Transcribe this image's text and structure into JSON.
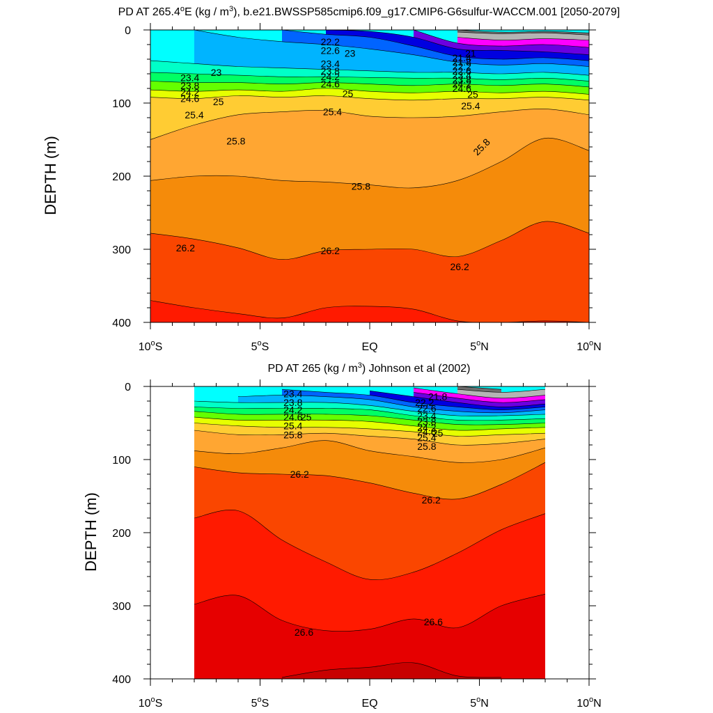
{
  "chart_data": [
    {
      "type": "contour",
      "title": "PD AT 265.4°E (kg / m³), b.e21.BWSSP585cmip6.f09_g17.CMIP6-G6sulfur-WACCM.001 [2050-2079]",
      "title_parts": {
        "a": "PD AT 265.4",
        "deg": "o",
        "b": "E (kg / m",
        "exp": "3",
        "c": "), b.e21.BWSSP585cmip6.f09_g17.CMIP6-G6sulfur-WACCM.001 [2050-2079]"
      },
      "ylabel": "DEPTH (m)",
      "xlim": [
        -10,
        10
      ],
      "ylim": [
        400,
        0
      ],
      "x_ticks": [
        {
          "value": -10,
          "num": "10",
          "sup": "o",
          "hemi": "S"
        },
        {
          "value": -5,
          "num": "5",
          "sup": "o",
          "hemi": "S"
        },
        {
          "value": 0,
          "num": "EQ",
          "sup": "",
          "hemi": ""
        },
        {
          "value": 5,
          "num": "5",
          "sup": "o",
          "hemi": "N"
        },
        {
          "value": 10,
          "num": "10",
          "sup": "o",
          "hemi": "N"
        }
      ],
      "y_ticks": [
        "0",
        "100",
        "200",
        "300",
        "400"
      ],
      "y_tick_values": [
        0,
        100,
        200,
        300,
        400
      ],
      "x_range": [
        -10,
        10
      ],
      "x_nodes": [
        -10,
        -8,
        -6,
        -4,
        -2,
        0,
        2,
        4,
        6,
        8,
        10
      ],
      "base_color": "#00ffff",
      "bands": [
        {
          "level": 21.0,
          "color": "#6e6e6e",
          "depth": [
            null,
            null,
            null,
            null,
            null,
            null,
            null,
            0,
            3,
            2,
            4
          ]
        },
        {
          "level": 21.4,
          "color": "#b4b4b4",
          "depth": [
            null,
            null,
            null,
            null,
            null,
            null,
            null,
            3,
            5,
            4,
            7
          ]
        },
        {
          "level": 21.8,
          "color": "#ff00ff",
          "depth": [
            null,
            null,
            null,
            null,
            null,
            null,
            null,
            10,
            14,
            12,
            14
          ]
        },
        {
          "level": 22.2,
          "color": "#6b00e0",
          "depth": [
            null,
            null,
            null,
            null,
            null,
            null,
            0,
            18,
            22,
            20,
            24
          ]
        },
        {
          "level": 22.6,
          "color": "#0000e0",
          "depth": [
            null,
            null,
            null,
            null,
            0,
            2,
            10,
            26,
            28,
            30,
            34
          ]
        },
        {
          "level": 23.0,
          "color": "#0064ff",
          "depth": [
            null,
            null,
            null,
            0,
            6,
            10,
            22,
            36,
            40,
            38,
            42
          ]
        },
        {
          "level": 23.4,
          "color": "#00b4ff",
          "depth": [
            null,
            0,
            10,
            16,
            20,
            26,
            34,
            44,
            48,
            46,
            50
          ]
        },
        {
          "level": 23.8,
          "color": "#00ffc8",
          "depth": [
            42,
            46,
            50,
            52,
            54,
            56,
            58,
            58,
            60,
            58,
            62
          ]
        },
        {
          "level": 24.2,
          "color": "#00ff64",
          "depth": [
            58,
            60,
            62,
            64,
            64,
            65,
            66,
            66,
            68,
            66,
            70
          ]
        },
        {
          "level": 24.6,
          "color": "#64ff00",
          "depth": [
            70,
            72,
            72,
            74,
            72,
            74,
            76,
            74,
            76,
            74,
            78
          ]
        },
        {
          "level": 25.0,
          "color": "#e6ff00",
          "depth": [
            82,
            84,
            82,
            84,
            80,
            84,
            86,
            84,
            86,
            84,
            88
          ]
        },
        {
          "level": 25.4,
          "color": "#ffcc33",
          "depth": [
            92,
            94,
            90,
            92,
            90,
            94,
            96,
            94,
            94,
            92,
            96
          ]
        },
        {
          "level": 25.8,
          "color": "#ffa632",
          "depth": [
            150,
            130,
            116,
            112,
            110,
            118,
            120,
            118,
            112,
            108,
            116
          ]
        },
        {
          "level": 26.2,
          "color": "#f58b0a",
          "depth": [
            206,
            200,
            200,
            206,
            208,
            212,
            216,
            206,
            180,
            148,
            165
          ]
        },
        {
          "level": 26.6,
          "color": "#fa4600",
          "depth": [
            278,
            286,
            298,
            314,
            302,
            300,
            300,
            310,
            288,
            262,
            278
          ]
        },
        {
          "level": 27.0,
          "color": "#ff1a00",
          "depth": [
            370,
            380,
            388,
            394,
            380,
            378,
            382,
            398,
            400,
            398,
            400
          ]
        }
      ],
      "contour_labels": [
        {
          "text": "22.2",
          "x": -1.8,
          "y": 16
        },
        {
          "text": "22.6",
          "x": -1.8,
          "y": 28
        },
        {
          "text": "23",
          "x": -0.9,
          "y": 32
        },
        {
          "text": "23.4",
          "x": -1.8,
          "y": 46
        },
        {
          "text": "23.8",
          "x": -1.8,
          "y": 56
        },
        {
          "text": "24.2",
          "x": -1.8,
          "y": 64
        },
        {
          "text": "24.6",
          "x": -1.8,
          "y": 74
        },
        {
          "text": "25",
          "x": -1.0,
          "y": 87
        },
        {
          "text": "25.4",
          "x": -1.7,
          "y": 112
        },
        {
          "text": "25.8",
          "x": -0.4,
          "y": 214
        },
        {
          "text": "26.2",
          "x": -1.8,
          "y": 302
        },
        {
          "text": "26.2",
          "x": 4.1,
          "y": 324
        },
        {
          "text": "26.2",
          "x": -8.4,
          "y": 298
        },
        {
          "text": "23",
          "x": -7.0,
          "y": 58
        },
        {
          "text": "23.4",
          "x": -8.2,
          "y": 65
        },
        {
          "text": "23.8",
          "x": -8.2,
          "y": 76
        },
        {
          "text": "24.2",
          "x": -8.2,
          "y": 85
        },
        {
          "text": "24.6",
          "x": -8.2,
          "y": 94
        },
        {
          "text": "25",
          "x": -6.9,
          "y": 98
        },
        {
          "text": "25.4",
          "x": -8.0,
          "y": 116
        },
        {
          "text": "25.8",
          "x": -6.1,
          "y": 152
        },
        {
          "text": "21",
          "x": 4.6,
          "y": 32
        },
        {
          "text": "21.4",
          "x": 4.2,
          "y": 38
        },
        {
          "text": "21.8",
          "x": 4.2,
          "y": 44
        },
        {
          "text": "22.2",
          "x": 4.2,
          "y": 50
        },
        {
          "text": "22.6",
          "x": 4.2,
          "y": 56
        },
        {
          "text": "23.4",
          "x": 4.2,
          "y": 62
        },
        {
          "text": "23.8",
          "x": 4.2,
          "y": 68
        },
        {
          "text": "24.2",
          "x": 4.2,
          "y": 74
        },
        {
          "text": "24.6",
          "x": 4.2,
          "y": 80
        },
        {
          "text": "25",
          "x": 4.7,
          "y": 88
        },
        {
          "text": "25.4",
          "x": 4.6,
          "y": 104
        },
        {
          "text": "25.8",
          "x": 5.1,
          "y": 160,
          "rotate": -45
        }
      ]
    },
    {
      "type": "contour",
      "title": "PD AT 265 (kg / m³) Johnson et al (2002)",
      "title_parts": {
        "a": "PD AT 265 (kg / m",
        "exp": "3",
        "c": ") Johnson et al (2002)"
      },
      "ylabel": "DEPTH (m)",
      "xlim": [
        -10,
        10
      ],
      "ylim": [
        400,
        0
      ],
      "x_ticks": [
        {
          "value": -10,
          "num": "10",
          "sup": "o",
          "hemi": "S"
        },
        {
          "value": -5,
          "num": "5",
          "sup": "o",
          "hemi": "S"
        },
        {
          "value": 0,
          "num": "EQ",
          "sup": "",
          "hemi": ""
        },
        {
          "value": 5,
          "num": "5",
          "sup": "o",
          "hemi": "N"
        },
        {
          "value": 10,
          "num": "10",
          "sup": "o",
          "hemi": "N"
        }
      ],
      "y_ticks": [
        "0",
        "100",
        "200",
        "300",
        "400"
      ],
      "y_tick_values": [
        0,
        100,
        200,
        300,
        400
      ],
      "x_range": [
        -8,
        8
      ],
      "x_nodes": [
        -8,
        -6,
        -4,
        -2,
        0,
        2,
        4,
        6,
        8
      ],
      "base_color": "#00ffff",
      "bands": [
        {
          "level": 21.0,
          "color": "#6e6e6e",
          "depth": [
            null,
            null,
            null,
            null,
            null,
            null,
            0,
            4,
            null
          ]
        },
        {
          "level": 21.4,
          "color": "#b4b4b4",
          "depth": [
            null,
            null,
            null,
            null,
            null,
            null,
            4,
            8,
            4
          ]
        },
        {
          "level": 21.8,
          "color": "#ff00ff",
          "depth": [
            null,
            null,
            null,
            null,
            null,
            2,
            10,
            16,
            12
          ]
        },
        {
          "level": 22.2,
          "color": "#6b00e0",
          "depth": [
            null,
            null,
            null,
            null,
            null,
            8,
            16,
            22,
            18
          ]
        },
        {
          "level": 22.6,
          "color": "#0000e0",
          "depth": [
            null,
            null,
            null,
            null,
            6,
            14,
            22,
            28,
            24
          ]
        },
        {
          "level": 23.0,
          "color": "#0064ff",
          "depth": [
            null,
            null,
            4,
            8,
            12,
            22,
            28,
            32,
            28
          ]
        },
        {
          "level": 23.4,
          "color": "#00b4ff",
          "depth": [
            null,
            14,
            12,
            14,
            18,
            28,
            34,
            36,
            32
          ]
        },
        {
          "level": 23.8,
          "color": "#00ffc8",
          "depth": [
            20,
            22,
            22,
            22,
            26,
            34,
            40,
            40,
            38
          ]
        },
        {
          "level": 24.2,
          "color": "#00ff64",
          "depth": [
            28,
            30,
            30,
            30,
            32,
            40,
            46,
            46,
            44
          ]
        },
        {
          "level": 24.6,
          "color": "#64ff00",
          "depth": [
            34,
            38,
            38,
            38,
            40,
            46,
            52,
            52,
            50
          ]
        },
        {
          "level": 25.0,
          "color": "#e6ff00",
          "depth": [
            42,
            46,
            46,
            46,
            48,
            54,
            60,
            58,
            56
          ]
        },
        {
          "level": 25.4,
          "color": "#ffcc33",
          "depth": [
            50,
            54,
            56,
            56,
            58,
            62,
            68,
            66,
            64
          ]
        },
        {
          "level": 25.8,
          "color": "#ffa632",
          "depth": [
            60,
            66,
            66,
            64,
            68,
            72,
            80,
            78,
            72
          ]
        },
        {
          "level": 26.2,
          "color": "#f58b0a",
          "depth": [
            88,
            92,
            84,
            74,
            88,
            96,
            104,
            100,
            84
          ]
        },
        {
          "level": 26.6,
          "color": "#fa4600",
          "depth": [
            110,
            118,
            120,
            122,
            132,
            146,
            154,
            134,
            104
          ]
        },
        {
          "level": 27.0,
          "color": "#ff1a00",
          "depth": [
            180,
            170,
            210,
            240,
            264,
            254,
            228,
            196,
            174
          ]
        },
        {
          "level": 27.4,
          "color": "#e60000",
          "depth": [
            298,
            286,
            320,
            334,
            332,
            318,
            330,
            300,
            284
          ]
        },
        {
          "level": 27.8,
          "color": "#c80000",
          "depth": [
            null,
            null,
            398,
            388,
            384,
            378,
            396,
            398,
            null
          ]
        }
      ],
      "contour_labels": [
        {
          "text": "23.4",
          "x": -3.5,
          "y": 10
        },
        {
          "text": "23.8",
          "x": -3.5,
          "y": 22
        },
        {
          "text": "24.2",
          "x": -3.5,
          "y": 32
        },
        {
          "text": "24.6",
          "x": -3.5,
          "y": 42
        },
        {
          "text": "25",
          "x": -2.9,
          "y": 42
        },
        {
          "text": "25.4",
          "x": -3.5,
          "y": 54
        },
        {
          "text": "25.8",
          "x": -3.5,
          "y": 66
        },
        {
          "text": "26.2",
          "x": -3.2,
          "y": 120
        },
        {
          "text": "26.2",
          "x": 2.8,
          "y": 155
        },
        {
          "text": "26.6",
          "x": -3.0,
          "y": 336
        },
        {
          "text": "26.6",
          "x": 2.9,
          "y": 322
        },
        {
          "text": "21.8",
          "x": 3.1,
          "y": 14
        },
        {
          "text": "22.2",
          "x": 2.5,
          "y": 22
        },
        {
          "text": "22.6",
          "x": 2.6,
          "y": 30
        },
        {
          "text": "23.4",
          "x": 2.6,
          "y": 40
        },
        {
          "text": "23.8",
          "x": 2.6,
          "y": 48
        },
        {
          "text": "24.2",
          "x": 2.6,
          "y": 56
        },
        {
          "text": "24.6",
          "x": 2.6,
          "y": 62
        },
        {
          "text": "25",
          "x": 3.1,
          "y": 64
        },
        {
          "text": "25.4",
          "x": 2.6,
          "y": 70
        },
        {
          "text": "25.8",
          "x": 2.6,
          "y": 82
        }
      ]
    }
  ]
}
